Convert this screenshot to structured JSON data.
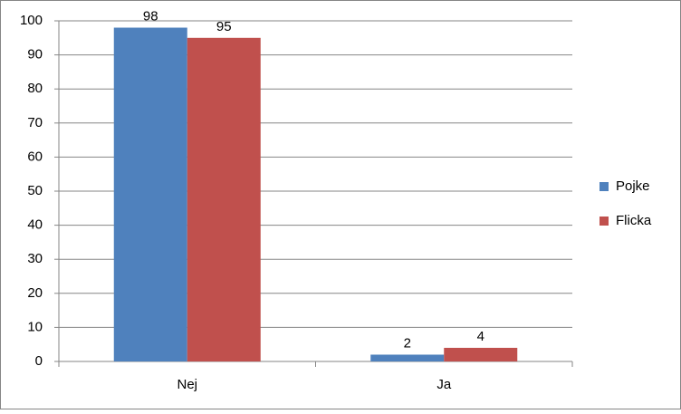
{
  "chart_data": {
    "type": "bar",
    "categories": [
      "Nej",
      "Ja"
    ],
    "series": [
      {
        "name": "Pojke",
        "color": "#4f81bd",
        "values": [
          98,
          2
        ]
      },
      {
        "name": "Flicka",
        "color": "#c0504d",
        "values": [
          95,
          4
        ]
      }
    ],
    "ylim": [
      0,
      100
    ],
    "yticks": [
      0,
      10,
      20,
      30,
      40,
      50,
      60,
      70,
      80,
      90,
      100
    ],
    "grid": true,
    "legend": "right",
    "data_labels": true
  }
}
